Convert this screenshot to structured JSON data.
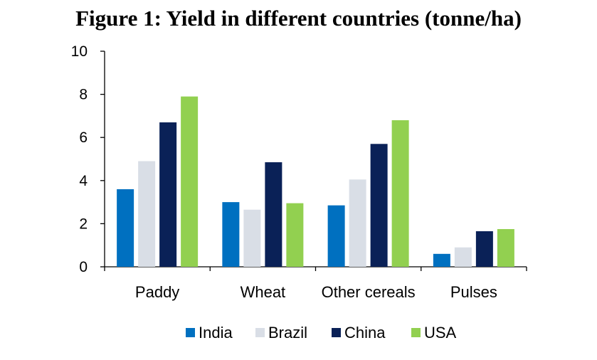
{
  "title": "Figure 1: Yield in different countries (tonne/ha)",
  "chart_data": {
    "type": "bar",
    "title": "Figure 1: Yield in different countries (tonne/ha)",
    "xlabel": "",
    "ylabel": "",
    "categories": [
      "Paddy",
      "Wheat",
      "Other cereals",
      "Pulses"
    ],
    "ylim": [
      0,
      10
    ],
    "yticks": [
      "0",
      "2",
      "4",
      "6",
      "8",
      "10"
    ],
    "grid": false,
    "legend_position": "bottom",
    "series": [
      {
        "name": "India",
        "color": "#0070C0",
        "values": [
          3.6,
          3.0,
          2.85,
          0.6
        ]
      },
      {
        "name": "Brazil",
        "color": "#D9DEE6",
        "values": [
          4.9,
          2.65,
          4.05,
          0.9
        ]
      },
      {
        "name": "China",
        "color": "#0A2157",
        "values": [
          6.7,
          4.85,
          5.7,
          1.65
        ]
      },
      {
        "name": "USA",
        "color": "#92D050",
        "values": [
          7.9,
          2.95,
          6.8,
          1.75
        ]
      }
    ]
  }
}
